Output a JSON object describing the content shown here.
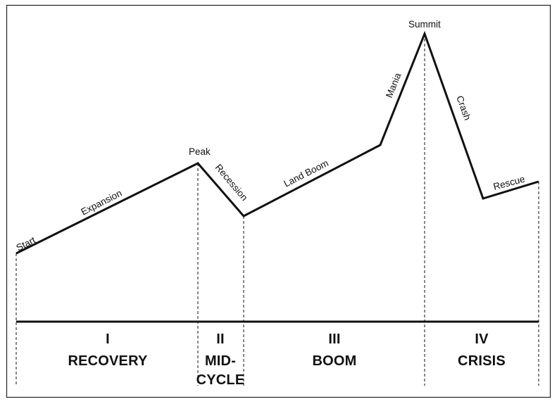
{
  "labels": {
    "start": "Start",
    "expansion": "Expansion",
    "peak": "Peak",
    "recession": "Recession",
    "land_boom": "Land Boom",
    "mania": "Mania",
    "summit": "Summit",
    "crash": "Crash",
    "rescue": "Rescue"
  },
  "phases": [
    {
      "numeral": "I",
      "name": [
        "RECOVERY"
      ]
    },
    {
      "numeral": "II",
      "name": [
        "MID-",
        "CYCLE"
      ]
    },
    {
      "numeral": "III",
      "name": [
        "BOOM"
      ]
    },
    {
      "numeral": "IV",
      "name": [
        "CRISIS"
      ]
    }
  ]
}
